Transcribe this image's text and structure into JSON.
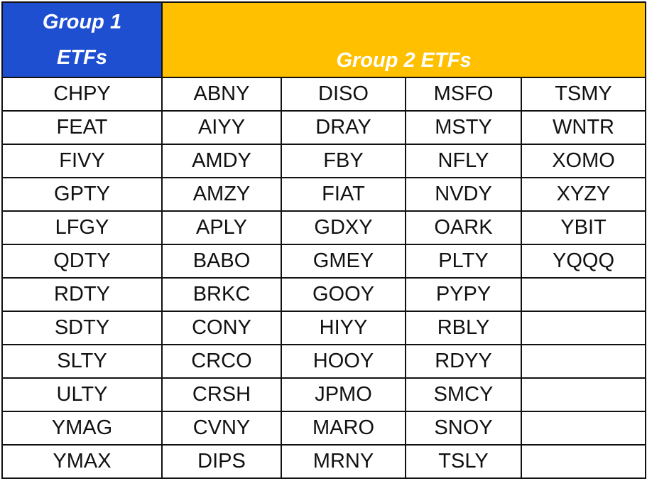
{
  "header": {
    "group1": "Group 1 ETFs",
    "group2": "Group 2 ETFs"
  },
  "table": {
    "group1": [
      "CHPY",
      "FEAT",
      "FIVY",
      "GPTY",
      "LFGY",
      "QDTY",
      "RDTY",
      "SDTY",
      "SLTY",
      "ULTY",
      "YMAG",
      "YMAX"
    ],
    "group2": [
      [
        "ABNY",
        "AIYY",
        "AMDY",
        "AMZY",
        "APLY",
        "BABO",
        "BRKC",
        "CONY",
        "CRCO",
        "CRSH",
        "CVNY",
        "DIPS"
      ],
      [
        "DISO",
        "DRAY",
        "FBY",
        "FIAT",
        "GDXY",
        "GMEY",
        "GOOY",
        "HIYY",
        "HOOY",
        "JPMO",
        "MARO",
        "MRNY"
      ],
      [
        "MSFO",
        "MSTY",
        "NFLY",
        "NVDY",
        "OARK",
        "PLTY",
        "PYPY",
        "RBLY",
        "RDYY",
        "SMCY",
        "SNOY",
        "TSLY"
      ],
      [
        "TSMY",
        "WNTR",
        "XOMO",
        "XYZY",
        "YBIT",
        "YQQQ"
      ]
    ]
  }
}
